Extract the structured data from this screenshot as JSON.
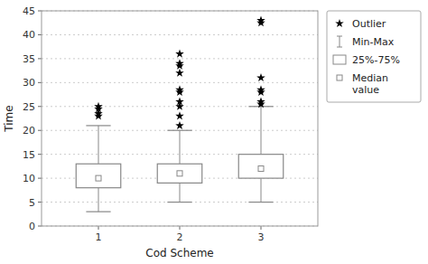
{
  "chart_data": {
    "type": "box",
    "title": "",
    "xlabel": "Cod Scheme",
    "ylabel": "Time",
    "x": [
      1,
      2,
      3
    ],
    "xlim": [
      0.3,
      3.7
    ],
    "xticks": [
      1,
      2,
      3
    ],
    "ylim": [
      0,
      45
    ],
    "yticks": [
      0,
      5,
      10,
      15,
      20,
      25,
      30,
      35,
      40,
      45
    ],
    "boxes": [
      {
        "q1": 8,
        "median": 10,
        "q3": 13,
        "whisker_low": 3,
        "whisker_high": 21,
        "outliers": [
          23,
          23.5,
          24.5,
          25
        ]
      },
      {
        "q1": 9,
        "median": 11,
        "q3": 13,
        "whisker_low": 5,
        "whisker_high": 20,
        "outliers": [
          21,
          23,
          25,
          26,
          28,
          28.5,
          32,
          33.5,
          34,
          36
        ]
      },
      {
        "q1": 10,
        "median": 12,
        "q3": 15,
        "whisker_low": 5,
        "whisker_high": 25,
        "outliers": [
          25.5,
          26,
          28,
          28.5,
          31,
          42.5,
          43
        ]
      }
    ],
    "color": "#888888",
    "grid": true,
    "legend": "right",
    "legend_labels": {
      "outlier": "Outlier",
      "minmax": "Min-Max",
      "box": "25%-75%",
      "median": "Median\nvalue"
    }
  }
}
